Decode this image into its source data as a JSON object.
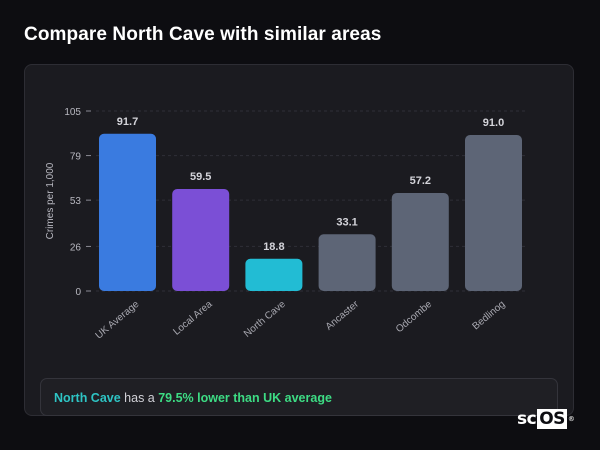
{
  "page": {
    "title": "Compare North Cave with similar areas"
  },
  "chart_data": {
    "type": "bar",
    "ylabel": "Crimes per 1,000",
    "xlabel": "",
    "ylim": [
      0,
      105
    ],
    "yticks": [
      0,
      26,
      53,
      79,
      105
    ],
    "grid": true,
    "categories": [
      "UK Average",
      "Local Area",
      "North Cave",
      "Ancaster",
      "Odcombe",
      "Bedlinog"
    ],
    "values": [
      91.7,
      59.5,
      18.8,
      33.1,
      57.2,
      91.0
    ],
    "value_labels": [
      "91.7",
      "59.5",
      "18.8",
      "33.1",
      "57.2",
      "91.0"
    ],
    "colors": [
      "#3a7be0",
      "#7b4fd6",
      "#22bcd4",
      "#5d6576",
      "#5d6576",
      "#5d6576"
    ]
  },
  "summary": {
    "area": "North Cave",
    "middle": " has a ",
    "comparison": "79.5% lower than UK average"
  },
  "logo": {
    "prefix": "sc",
    "boxed": "OS",
    "mark": "®"
  }
}
